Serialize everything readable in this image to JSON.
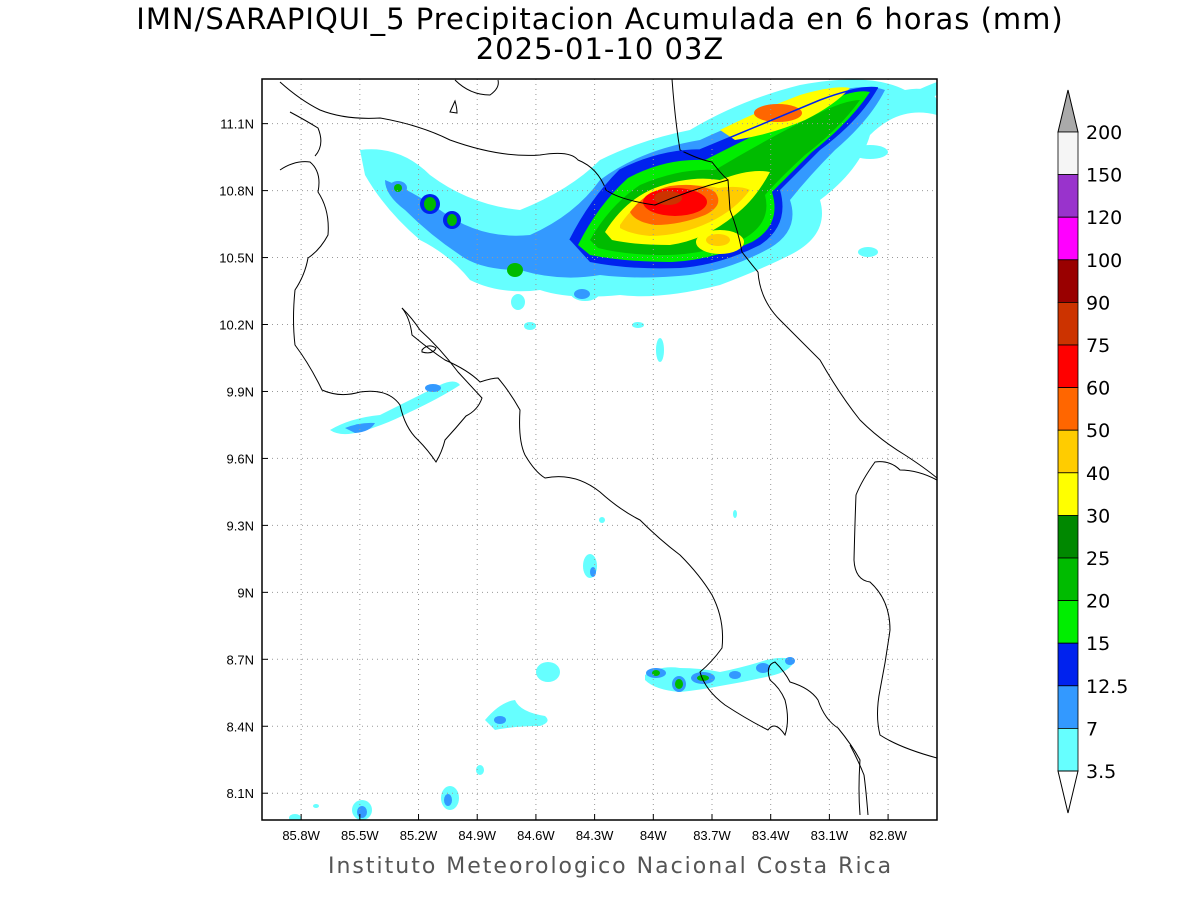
{
  "title": {
    "line1": "IMN/SARAPIQUI_5 Precipitacion Acumulada en 6 horas (mm)",
    "line2": "2025-01-10 03Z"
  },
  "footer": "Instituto Meteorologico Nacional Costa Rica",
  "map": {
    "lon_range": [
      -86.0,
      -82.55
    ],
    "lat_range": [
      7.98,
      11.3
    ],
    "lon_ticks": [
      "85.8W",
      "85.5W",
      "85.2W",
      "84.9W",
      "84.6W",
      "84.3W",
      "84W",
      "83.7W",
      "83.4W",
      "83.1W",
      "82.8W"
    ],
    "lon_tick_values": [
      -85.8,
      -85.5,
      -85.2,
      -84.9,
      -84.6,
      -84.3,
      -84.0,
      -83.7,
      -83.4,
      -83.1,
      -82.8
    ],
    "lat_ticks": [
      "11.1N",
      "10.8N",
      "10.5N",
      "10.2N",
      "9.9N",
      "9.6N",
      "9.3N",
      "9N",
      "8.7N",
      "8.4N",
      "8.1N"
    ],
    "lat_tick_values": [
      11.1,
      10.8,
      10.5,
      10.2,
      9.9,
      9.6,
      9.3,
      9.0,
      8.7,
      8.4,
      8.1
    ],
    "grid": "dotted"
  },
  "colorbar": {
    "levels": [
      "3.5",
      "7",
      "12.5",
      "15",
      "20",
      "25",
      "30",
      "40",
      "50",
      "60",
      "75",
      "90",
      "100",
      "120",
      "150",
      "200"
    ],
    "colors": [
      "#66ffff",
      "#3399ff",
      "#0022ee",
      "#00ee00",
      "#00bb00",
      "#008800",
      "#ffff00",
      "#ffcc00",
      "#ff6600",
      "#ff0000",
      "#cc3300",
      "#990000",
      "#ff00ff",
      "#9933cc",
      "#f5f5f5",
      "#aaaaaa"
    ]
  },
  "precip_cells": [
    {
      "lon": -83.85,
      "lat": 10.75,
      "level": "75"
    },
    {
      "lon": -83.4,
      "lat": 11.15,
      "level": "60"
    },
    {
      "lon": -83.6,
      "lat": 10.57,
      "level": "40"
    },
    {
      "lon": -85.02,
      "lat": 10.69,
      "level": "25"
    },
    {
      "lon": -84.7,
      "lat": 10.43,
      "level": "20"
    },
    {
      "lon": -83.8,
      "lat": 8.6,
      "level": "20"
    }
  ]
}
